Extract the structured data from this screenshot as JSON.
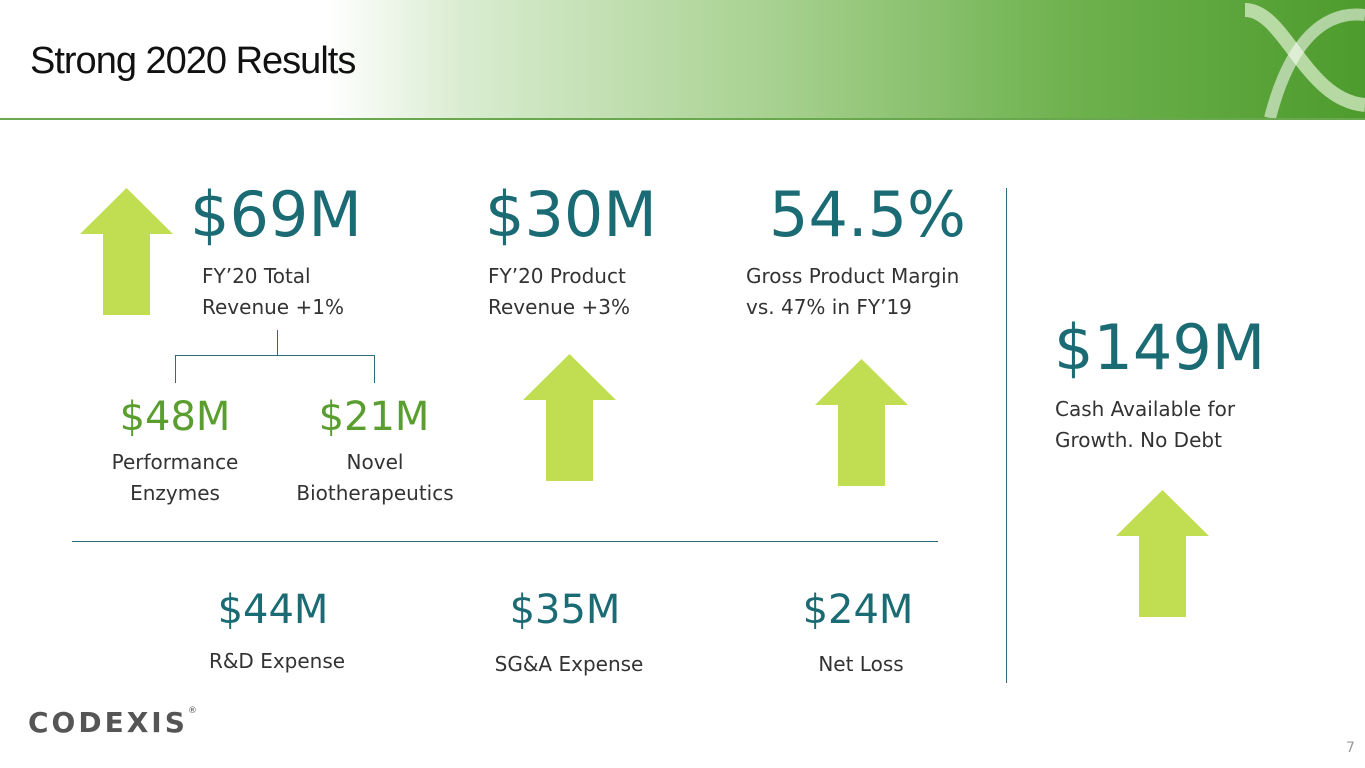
{
  "slide": {
    "title": "Strong 2020 Results",
    "page_number": "7"
  },
  "metrics": {
    "total_revenue": {
      "value": "$69M",
      "label_line1": "FY’20 Total",
      "label_line2": "Revenue +1%"
    },
    "product_revenue": {
      "value": "$30M",
      "label_line1": "FY’20 Product",
      "label_line2": "Revenue +3%"
    },
    "gross_margin": {
      "value": "54.5%",
      "label_line1": "Gross Product Margin",
      "label_line2": "vs. 47% in FY’19"
    },
    "cash": {
      "value": "$149M",
      "label_line1": "Cash Available for",
      "label_line2": "Growth. No Debt"
    },
    "performance_enzymes": {
      "value": "$48M",
      "label_line1": "Performance",
      "label_line2": "Enzymes"
    },
    "novel_biotherapeutics": {
      "value": "$21M",
      "label_line1": "Novel",
      "label_line2": "Biotherapeutics"
    },
    "rd_expense": {
      "value": "$44M",
      "label": "R&D Expense"
    },
    "sga_expense": {
      "value": "$35M",
      "label": "SG&A Expense"
    },
    "net_loss": {
      "value": "$24M",
      "label": "Net Loss"
    }
  },
  "logo": {
    "text": "CODEXIS",
    "reg_mark": "®"
  },
  "colors": {
    "teal": "#1a6b73",
    "green_text": "#5a9e2f",
    "arrow_green": "#c1dd52",
    "header_green": "#4d9b2d"
  },
  "icons": [
    "up-arrow-icon",
    "header-swoosh-icon"
  ]
}
